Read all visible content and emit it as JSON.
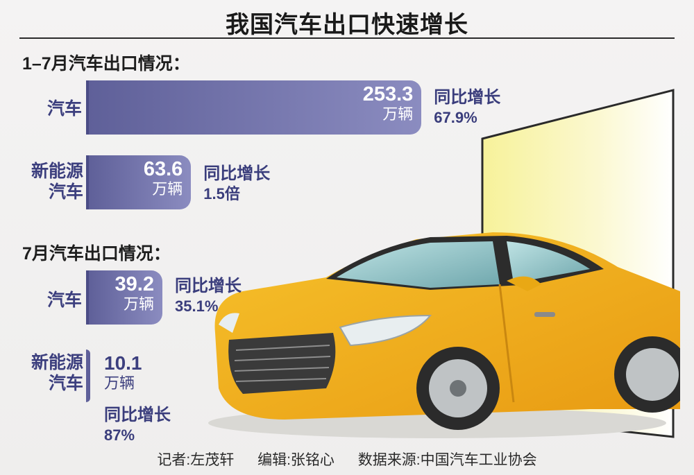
{
  "title": "我国汽车出口快速增长",
  "sections": [
    {
      "heading": "1–7月汽车出口情况："
    },
    {
      "heading": "7月汽车出口情况："
    }
  ],
  "chart_data": [
    {
      "type": "bar",
      "title": "1–7月汽车出口情况：",
      "categories": [
        "汽车",
        "新能源汽车"
      ],
      "values": [
        253.3,
        63.6
      ],
      "value_labels": [
        "253.3",
        "63.6"
      ],
      "unit": "万辆",
      "growth_label": "同比增长",
      "growth": [
        "67.9%",
        "1.5倍"
      ]
    },
    {
      "type": "bar",
      "title": "7月汽车出口情况：",
      "categories": [
        "汽车",
        "新能源汽车"
      ],
      "values": [
        39.2,
        10.1
      ],
      "value_labels": [
        "39.2",
        "10.1"
      ],
      "unit": "万辆",
      "growth_label": "同比增长",
      "growth": [
        "35.1%",
        "87%"
      ]
    }
  ],
  "footer": {
    "reporter": "记者:左茂轩",
    "editor": "编辑:张铭心",
    "source": "数据来源:中国汽车工业协会"
  },
  "colors": {
    "bar": "#6f70aa",
    "bar_light": "#8b8cc0",
    "text_accent": "#3c3f7e",
    "car": "#f2b21c"
  }
}
